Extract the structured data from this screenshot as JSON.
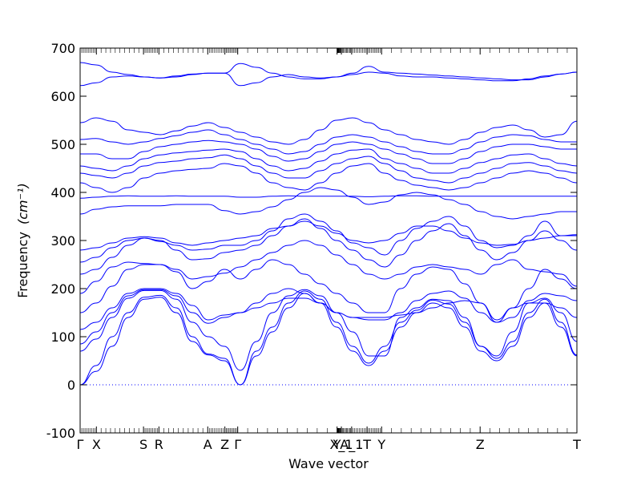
{
  "chart_data": {
    "type": "line",
    "xlabel": "Wave vector",
    "ylabel": "Frequency",
    "ylabel_unit": "(cm⁻¹)",
    "ylim": [
      -100,
      700
    ],
    "yticks": [
      -100,
      0,
      100,
      200,
      300,
      400,
      500,
      600,
      700
    ],
    "grid": false,
    "legend": "none",
    "line_color": "#0000ff",
    "zero_line_color": "#0000ff",
    "segments": [
      {
        "from": "Γ",
        "to": "X",
        "length": 0.19
      },
      {
        "from": "X",
        "to": "S",
        "length": 0.55
      },
      {
        "from": "S",
        "to": "R",
        "length": 0.18
      },
      {
        "from": "R",
        "to": "A",
        "length": 0.57
      },
      {
        "from": "A",
        "to": "Z",
        "length": 0.2
      },
      {
        "from": "Z",
        "to": "Γ",
        "length": 0.15
      },
      {
        "from": "Γ",
        "to": "Y",
        "length": 1.16
      },
      {
        "from": "Y",
        "to": "X_1",
        "length": 0.05
      },
      {
        "from": "X_1",
        "to": "A_1",
        "length": 0.12
      },
      {
        "from": "A_1",
        "to": "T",
        "length": 0.18
      },
      {
        "from": "T",
        "to": "Y",
        "length": 0.17
      },
      {
        "from": "Y",
        "to": "Z",
        "length": 1.15
      },
      {
        "from": "Z",
        "to": "T",
        "length": 1.13
      }
    ],
    "tick_labels": [
      {
        "label": "Γ",
        "pos": 0.0
      },
      {
        "label": "X",
        "pos": 0.19
      },
      {
        "label": "S",
        "pos": 0.74
      },
      {
        "label": "R",
        "pos": 0.92
      },
      {
        "label": "A",
        "pos": 1.49
      },
      {
        "label": "Z",
        "pos": 1.69
      },
      {
        "label": "Γ",
        "pos": 1.84
      },
      {
        "label": "Y",
        "pos": 3.0
      },
      {
        "label": "X_1",
        "pos": 3.05
      },
      {
        "label": "A_1",
        "pos": 3.17
      },
      {
        "label": "T",
        "pos": 3.35
      },
      {
        "label": "Y",
        "pos": 3.52
      },
      {
        "label": "Z",
        "pos": 4.67
      },
      {
        "label": "T",
        "pos": 5.8
      }
    ],
    "bands_shape": [
      {
        "values": [
          0,
          28,
          80,
          140,
          178,
          182,
          150,
          90,
          62,
          50,
          0,
          60,
          110,
          160,
          190,
          170,
          120,
          70,
          40,
          70,
          120,
          150,
          170,
          160,
          120,
          70,
          50,
          80,
          140,
          170,
          120,
          60
        ]
      },
      {
        "values": [
          0,
          40,
          100,
          150,
          182,
          186,
          160,
          100,
          64,
          55,
          0,
          70,
          120,
          170,
          195,
          178,
          130,
          80,
          45,
          80,
          130,
          155,
          176,
          168,
          130,
          80,
          55,
          90,
          150,
          178,
          130,
          62
        ]
      },
      {
        "values": [
          70,
          95,
          140,
          180,
          196,
          196,
          178,
          130,
          100,
          80,
          30,
          90,
          150,
          185,
          198,
          185,
          150,
          110,
          60,
          60,
          140,
          160,
          178,
          175,
          140,
          80,
          60,
          110,
          170,
          180,
          150,
          90
        ]
      },
      {
        "values": [
          85,
          110,
          150,
          185,
          198,
          198,
          185,
          150,
          128,
          140,
          150,
          160,
          170,
          180,
          180,
          170,
          150,
          140,
          140,
          140,
          145,
          150,
          160,
          170,
          175,
          170,
          135,
          160,
          170,
          170,
          160,
          140
        ]
      },
      {
        "values": [
          115,
          130,
          160,
          190,
          200,
          200,
          190,
          165,
          135,
          145,
          150,
          170,
          190,
          200,
          190,
          170,
          150,
          140,
          135,
          135,
          150,
          175,
          190,
          195,
          180,
          150,
          130,
          140,
          175,
          190,
          185,
          175
        ]
      },
      {
        "values": [
          150,
          170,
          205,
          240,
          250,
          250,
          235,
          200,
          215,
          240,
          220,
          240,
          260,
          250,
          230,
          210,
          190,
          170,
          150,
          150,
          200,
          230,
          245,
          240,
          210,
          170,
          130,
          160,
          200,
          240,
          220,
          200
        ]
      },
      {
        "values": [
          190,
          215,
          245,
          255,
          252,
          250,
          240,
          220,
          225,
          232,
          245,
          260,
          275,
          290,
          300,
          290,
          270,
          250,
          230,
          220,
          230,
          245,
          250,
          245,
          240,
          230,
          250,
          260,
          240,
          235,
          230,
          205
        ]
      },
      {
        "values": [
          230,
          240,
          265,
          290,
          305,
          300,
          280,
          260,
          262,
          275,
          280,
          290,
          310,
          330,
          345,
          325,
          300,
          280,
          260,
          245,
          270,
          300,
          320,
          335,
          310,
          280,
          260,
          275,
          300,
          320,
          300,
          280
        ]
      },
      {
        "values": [
          255,
          265,
          285,
          300,
          305,
          298,
          290,
          280,
          282,
          290,
          290,
          300,
          320,
          345,
          355,
          340,
          320,
          295,
          285,
          270,
          300,
          325,
          340,
          350,
          330,
          300,
          285,
          290,
          310,
          340,
          310,
          310
        ]
      },
      {
        "values": [
          280,
          285,
          295,
          305,
          308,
          305,
          295,
          290,
          295,
          300,
          305,
          310,
          325,
          330,
          340,
          330,
          315,
          300,
          295,
          300,
          315,
          330,
          330,
          320,
          305,
          295,
          290,
          292,
          300,
          305,
          310,
          312
        ]
      },
      {
        "values": [
          355,
          365,
          370,
          372,
          372,
          372,
          375,
          375,
          375,
          362,
          355,
          360,
          370,
          385,
          400,
          410,
          405,
          390,
          375,
          380,
          395,
          400,
          395,
          385,
          375,
          360,
          350,
          345,
          350,
          355,
          360,
          360
        ]
      },
      {
        "values": [
          388,
          390,
          392,
          393,
          392,
          392,
          393,
          392,
          392,
          392,
          390,
          390,
          392,
          393,
          392,
          392,
          392,
          392,
          391,
          392,
          393,
          393,
          392,
          392,
          392,
          392,
          392,
          392,
          392,
          392,
          392,
          392
        ]
      },
      {
        "values": [
          420,
          410,
          400,
          410,
          430,
          440,
          445,
          448,
          450,
          460,
          455,
          440,
          420,
          410,
          405,
          420,
          440,
          455,
          460,
          440,
          425,
          415,
          410,
          405,
          410,
          420,
          430,
          440,
          445,
          440,
          430,
          420
        ]
      },
      {
        "values": [
          440,
          435,
          430,
          440,
          455,
          462,
          465,
          470,
          472,
          478,
          470,
          455,
          440,
          430,
          430,
          445,
          460,
          470,
          475,
          460,
          445,
          430,
          425,
          420,
          430,
          440,
          450,
          460,
          462,
          455,
          445,
          440
        ]
      },
      {
        "values": [
          455,
          450,
          445,
          455,
          470,
          478,
          482,
          485,
          488,
          490,
          485,
          470,
          455,
          445,
          450,
          465,
          480,
          488,
          490,
          470,
          460,
          450,
          440,
          440,
          450,
          462,
          470,
          478,
          480,
          470,
          460,
          455
        ]
      },
      {
        "values": [
          480,
          480,
          470,
          470,
          485,
          495,
          500,
          505,
          508,
          505,
          500,
          490,
          475,
          465,
          470,
          485,
          500,
          505,
          500,
          490,
          480,
          470,
          460,
          460,
          470,
          485,
          495,
          500,
          500,
          495,
          490,
          490
        ]
      },
      {
        "values": [
          510,
          512,
          505,
          500,
          505,
          512,
          518,
          525,
          530,
          520,
          510,
          500,
          490,
          480,
          485,
          500,
          515,
          520,
          515,
          505,
          495,
          485,
          480,
          480,
          490,
          505,
          515,
          520,
          518,
          510,
          505,
          505
        ]
      },
      {
        "values": [
          545,
          555,
          548,
          530,
          525,
          520,
          528,
          538,
          545,
          535,
          525,
          515,
          505,
          500,
          510,
          530,
          550,
          555,
          545,
          530,
          520,
          510,
          505,
          500,
          510,
          525,
          535,
          540,
          530,
          515,
          520,
          548
        ]
      },
      {
        "values": [
          622,
          628,
          640,
          642,
          640,
          638,
          640,
          645,
          648,
          648,
          622,
          628,
          640,
          645,
          640,
          638,
          640,
          645,
          650,
          648,
          642,
          640,
          640,
          638,
          636,
          634,
          632,
          632,
          636,
          642,
          646,
          650
        ]
      },
      {
        "values": [
          670,
          665,
          650,
          645,
          640,
          638,
          642,
          646,
          648,
          648,
          668,
          660,
          648,
          640,
          636,
          636,
          640,
          648,
          662,
          650,
          648,
          646,
          644,
          642,
          640,
          638,
          636,
          634,
          634,
          640,
          646,
          650
        ]
      }
    ]
  }
}
